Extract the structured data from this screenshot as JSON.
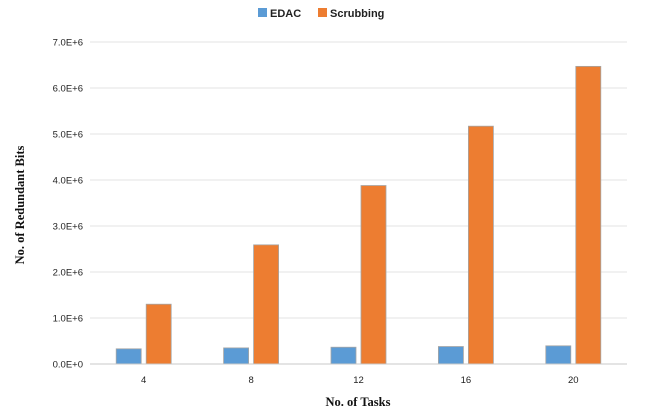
{
  "chart_data": {
    "type": "bar",
    "xlabel": "No. of Tasks",
    "ylabel": "No. of Redundant Bits",
    "categories": [
      "4",
      "8",
      "12",
      "16",
      "20"
    ],
    "series": [
      {
        "name": "EDAC",
        "color": "#5B9BD5",
        "values": [
          330000,
          350000,
          365000,
          380000,
          395000
        ]
      },
      {
        "name": "Scrubbing",
        "color": "#ED7D31",
        "values": [
          1300000,
          2590000,
          3880000,
          5170000,
          6470000
        ]
      }
    ],
    "ylim": [
      0,
      7000000
    ],
    "yticks": [
      "0.0E+0",
      "1.0E+6",
      "2.0E+6",
      "3.0E+6",
      "4.0E+6",
      "5.0E+6",
      "6.0E+6",
      "7.0E+6"
    ],
    "grid": true,
    "legend_position": "top-center"
  }
}
